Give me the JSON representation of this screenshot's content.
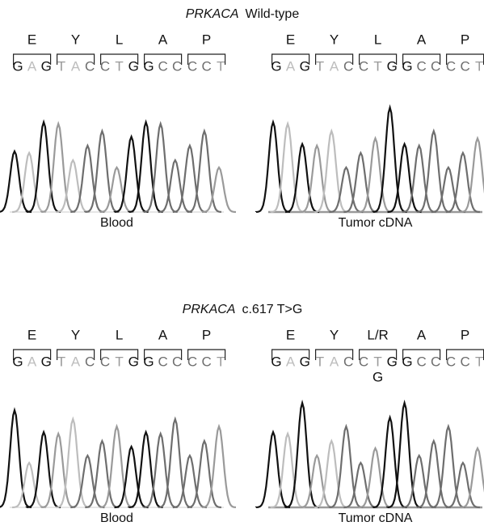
{
  "panels": [
    {
      "title": {
        "gene": "PRKACA",
        "text": "Wild-type"
      },
      "left": {
        "amino": [
          "E",
          "Y",
          "L",
          "A",
          "P"
        ],
        "bases": [
          "G",
          "A",
          "G",
          "T",
          "A",
          "C",
          "C",
          "T",
          "G",
          "G",
          "C",
          "C",
          "C",
          "C",
          "T"
        ],
        "label": "Blood"
      },
      "right": {
        "amino": [
          "E",
          "Y",
          "L",
          "A",
          "P"
        ],
        "bases": [
          "G",
          "A",
          "G",
          "T",
          "A",
          "C",
          "C",
          "T",
          "G",
          "G",
          "C",
          "C",
          "C",
          "C",
          "T"
        ],
        "label": "Tumor cDNA"
      }
    },
    {
      "title": {
        "gene": "PRKACA",
        "text": "c.617 T>G"
      },
      "left": {
        "amino": [
          "E",
          "Y",
          "L",
          "A",
          "P"
        ],
        "bases": [
          "G",
          "A",
          "G",
          "T",
          "A",
          "C",
          "C",
          "T",
          "G",
          "G",
          "C",
          "C",
          "C",
          "C",
          "T"
        ],
        "label": "Blood"
      },
      "right": {
        "amino": [
          "E",
          "Y",
          "L/R",
          "A",
          "P"
        ],
        "bases": [
          "G",
          "A",
          "G",
          "T",
          "A",
          "C",
          "C",
          "T",
          "G",
          "G",
          "C",
          "C",
          "C",
          "C",
          "T"
        ],
        "extra": "G",
        "label": "Tumor cDNA"
      }
    }
  ]
}
